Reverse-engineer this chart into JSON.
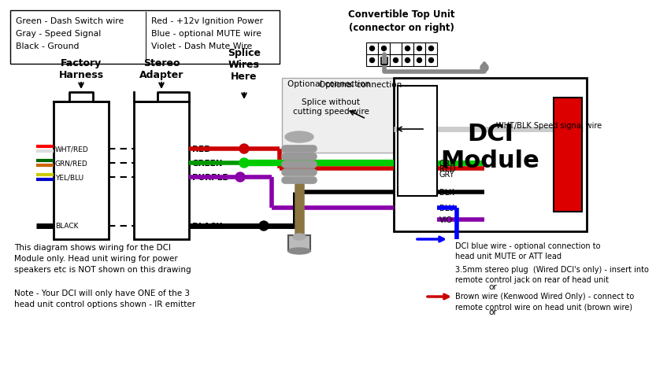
{
  "bg_color": "#ffffff",
  "legend_lines": [
    [
      "Green - Dash Switch wire",
      "Red - +12v Ignition Power"
    ],
    [
      "Gray - Speed Signal",
      "Blue - optional MUTE wire"
    ],
    [
      "Black - Ground",
      "Violet - Dash Mute Wire"
    ]
  ],
  "harness_labels": [
    "WHT/RED",
    "GRN/RED",
    "YEL/BLU",
    "BLACK"
  ],
  "adapter_labels": [
    "RED",
    "GREEN",
    "PURPLE",
    "BLACK"
  ],
  "dci_labels_top": [
    "GRN",
    "GRY"
  ],
  "dci_labels_bottom": [
    "BLK",
    "RED",
    "BLU",
    "VIO"
  ],
  "label_factory": "Factory\nHarness",
  "label_stereo": "Stereo\nAdapter",
  "label_splice": "Splice\nWires\nHere",
  "label_dci": "DCI\nModule",
  "label_conv_top": "Convertible Top Unit\n(connector on right)",
  "label_opt": "Optional connection",
  "label_splice_no": "Splice without\ncutting speed wire",
  "label_whtblk": "WHT/BLK Speed signal wire",
  "label_dci_blue": "DCI blue wire - optional connection to\nhead unit MUTE or ATT lead",
  "label_35mm": "3.5mm stereo plug  (Wired DCI's only) - insert into\nremote control jack on rear of head unit",
  "label_or": "or",
  "label_brown": "Brown wire (Kenwood Wired Only) - connect to\nremote control wire on head unit (brown wire)",
  "label_note1": "This diagram shows wiring for the DCI\nModule only. Head unit wiring for power\nspeakers etc is NOT shown on this drawing",
  "label_note2": "Note - Your DCI will only have ONE of the 3\nhead unit control options shown - IR emitter"
}
